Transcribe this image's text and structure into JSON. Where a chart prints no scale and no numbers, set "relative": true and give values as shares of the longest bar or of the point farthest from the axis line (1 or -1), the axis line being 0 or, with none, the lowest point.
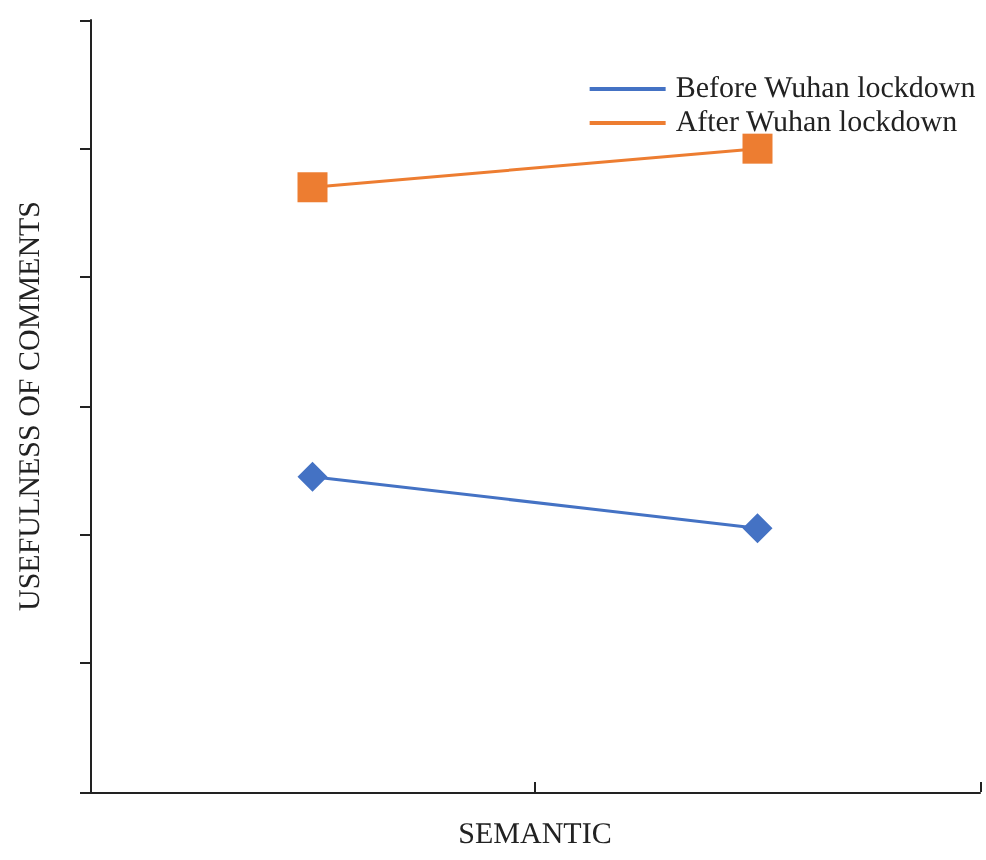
{
  "chart_data": {
    "type": "line",
    "xlabel": "SEMANTIC",
    "ylabel": "USEFULNESS OF COMMENTS",
    "categories": [
      null,
      null
    ],
    "relative": true,
    "legend": "top right",
    "series": [
      {
        "name": "Before Wuhan lockdown",
        "color": "#4472c4",
        "marker": "diamond",
        "values": [
          0.49,
          0.41
        ]
      },
      {
        "name": "After Wuhan lockdown",
        "color": "#ed7d31",
        "marker": "square",
        "values": [
          0.94,
          1.0
        ]
      }
    ]
  }
}
